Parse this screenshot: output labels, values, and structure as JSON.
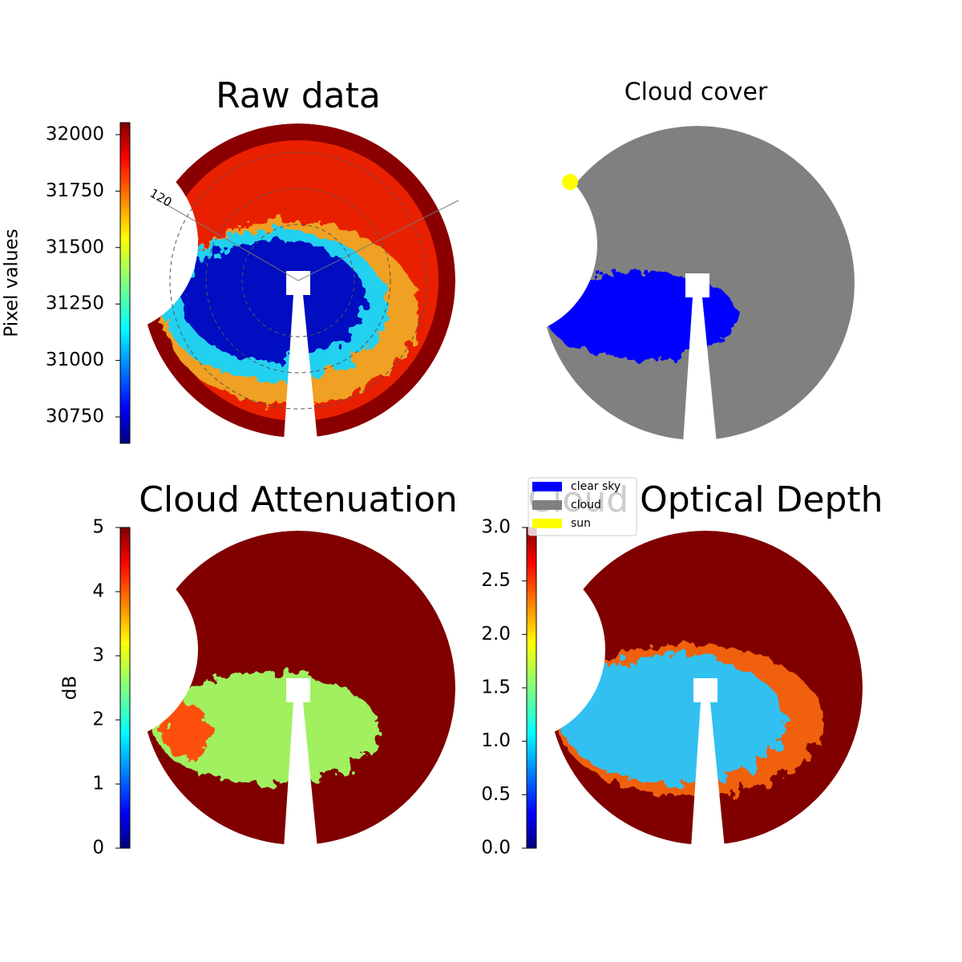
{
  "chart_data": [
    {
      "type": "image",
      "title": "Raw data",
      "annotations": [
        "120"
      ],
      "colorbar": {
        "label": "Pixel values",
        "lim": [
          30633,
          32053
        ],
        "ticks": [
          30750,
          31000,
          31250,
          31500,
          31750,
          32000
        ]
      }
    },
    {
      "type": "image",
      "title": "Cloud cover",
      "legend": [
        {
          "name": "clear sky",
          "color": "#0000ff"
        },
        {
          "name": "cloud",
          "color": "#808080"
        },
        {
          "name": "sun",
          "color": "#ffff00"
        }
      ]
    },
    {
      "type": "image",
      "title": "Cloud Attenuation",
      "colorbar": {
        "label": "dB",
        "lim": [
          0,
          5
        ],
        "ticks": [
          0,
          1,
          2,
          3,
          4,
          5
        ]
      }
    },
    {
      "type": "image",
      "title": "Cloud Optical Depth",
      "colorbar": {
        "lim": [
          0,
          3
        ],
        "ticks": [
          {
            "value": 0,
            "label": "0.0"
          },
          0.5,
          {
            "value": 1,
            "label": "1.0"
          },
          1.5,
          {
            "value": 2,
            "label": "2.0"
          },
          2.5,
          {
            "value": 3,
            "label": "3.0"
          }
        ]
      }
    }
  ]
}
